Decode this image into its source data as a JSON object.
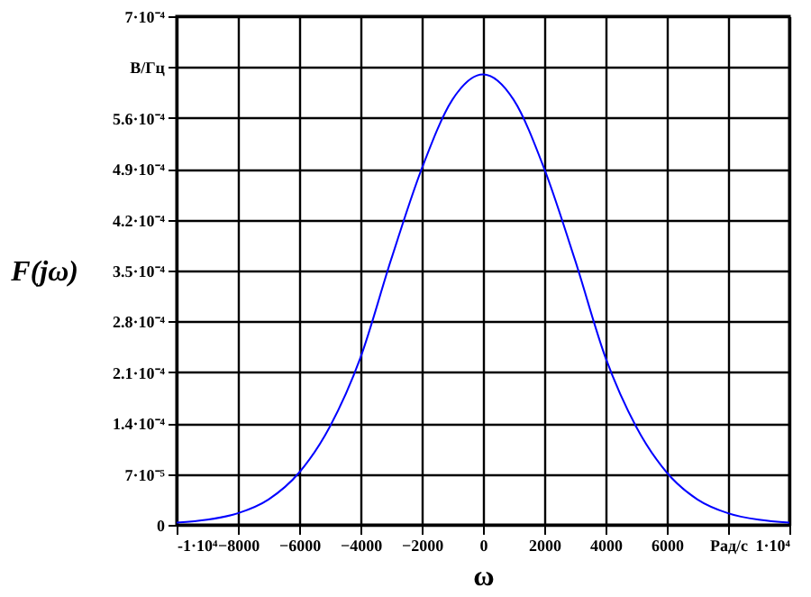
{
  "chart_data": {
    "type": "line",
    "xlabel": "ω",
    "ylabel": "F(jω)",
    "x": [
      -10000,
      -9000,
      -8000,
      -7000,
      -6000,
      -5000,
      -4000,
      -3000,
      -2000,
      -1000,
      0,
      1000,
      2000,
      3000,
      4000,
      5000,
      6000,
      7000,
      8000,
      9000,
      10000
    ],
    "series": [
      {
        "color": "#0000ff",
        "values": [
          3e-06,
          7e-06,
          1.6e-05,
          3.5e-05,
          7.2e-05,
          0.000135,
          0.00023,
          0.000365,
          0.00049,
          0.000585,
          0.00062,
          0.000585,
          0.00049,
          0.000365,
          0.00023,
          0.000135,
          7.2e-05,
          3.5e-05,
          1.6e-05,
          7e-06,
          3e-06
        ]
      }
    ],
    "xlim": [
      -10000,
      10000
    ],
    "xticks": [
      {
        "value": -10000,
        "label": "-1·10⁴"
      },
      -8000,
      -6000,
      -4000,
      -2000,
      0,
      2000,
      4000,
      6000,
      {
        "value": 8000,
        "label": "Рад/с"
      },
      {
        "value": 10000,
        "label": "1·10⁴"
      }
    ],
    "ylim": [
      0,
      0.0007
    ],
    "yticks": [
      0,
      {
        "value": 7e-05,
        "label": "7·10⁻⁵"
      },
      {
        "value": 0.00014,
        "label": "1.4·10⁻⁴"
      },
      {
        "value": 0.00021,
        "label": "2.1·10⁻⁴"
      },
      {
        "value": 0.00028,
        "label": "2.8·10⁻⁴"
      },
      {
        "value": 0.00035,
        "label": "3.5·10⁻⁴"
      },
      {
        "value": 0.00042,
        "label": "4.2·10⁻⁴"
      },
      {
        "value": 0.00049,
        "label": "4.9·10⁻⁴"
      },
      {
        "value": 0.00056,
        "label": "5.6·10⁻⁴"
      },
      {
        "value": 0.00063,
        "label": "В/Гц"
      },
      {
        "value": 0.0007,
        "label": "7·10⁻⁴"
      }
    ],
    "grid": true,
    "marker": "none",
    "line_style": "solid"
  }
}
